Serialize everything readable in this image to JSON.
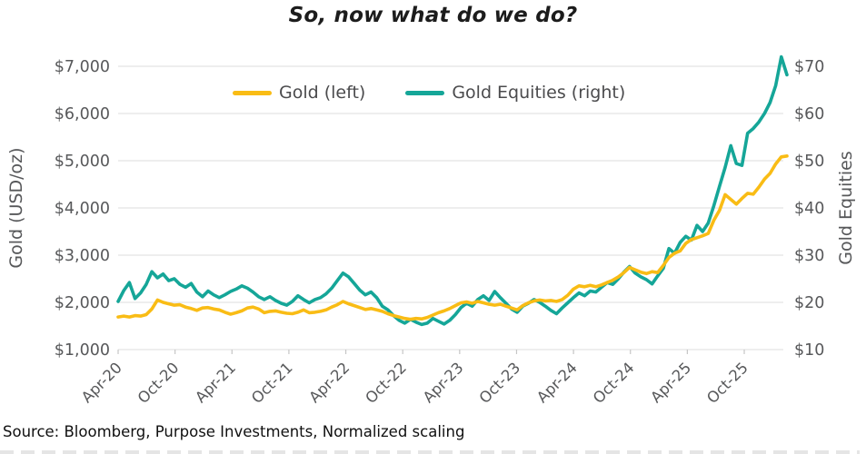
{
  "title": "So, now what do we do?",
  "source_note": "Source: Bloomberg, Purpose Investments, Normalized scaling",
  "colors": {
    "gold_line": "#F9BC15",
    "equities_line": "#15A698",
    "grid": "#dcdcdc",
    "axis_tick": "#c6c6c6",
    "axis_text": "#57585a",
    "title_text": "#1c1c1c"
  },
  "chart_data": {
    "type": "line",
    "title": "So, now what do we do?",
    "x_axis": {
      "span_months": 70.5,
      "ticks": [
        {
          "label": "Apr-20",
          "month": 0
        },
        {
          "label": "Oct-20",
          "month": 6
        },
        {
          "label": "Apr-21",
          "month": 12
        },
        {
          "label": "Oct-21",
          "month": 18
        },
        {
          "label": "Apr-22",
          "month": 24
        },
        {
          "label": "Oct-22",
          "month": 30
        },
        {
          "label": "Apr-23",
          "month": 36
        },
        {
          "label": "Oct-23",
          "month": 42
        },
        {
          "label": "Apr-24",
          "month": 48
        },
        {
          "label": "Oct-24",
          "month": 54
        },
        {
          "label": "Apr-25",
          "month": 60
        },
        {
          "label": "Oct-25",
          "month": 66
        }
      ]
    },
    "left_axis": {
      "label": "Gold (USD/oz)",
      "min": 1000,
      "max": 7000,
      "tick_values": [
        7000,
        6000,
        5000,
        4000,
        3000,
        2000,
        1000
      ],
      "tick_labels": [
        "$7,000",
        "$6,000",
        "$5,000",
        "$4,000",
        "$3,000",
        "$2,000",
        "$1,000"
      ]
    },
    "right_axis": {
      "label": "Gold Equities",
      "min": 10,
      "max": 70,
      "tick_labels": [
        "$70",
        "$60",
        "$50",
        "$40",
        "$30",
        "$20",
        "$10"
      ]
    },
    "legend_position": "top-center",
    "grid": "horizontal",
    "series": [
      {
        "name": "Gold (left)",
        "axis": "left",
        "color": "#F9BC15",
        "values": [
          1690,
          1710,
          1690,
          1720,
          1710,
          1740,
          1860,
          2050,
          2000,
          1970,
          1940,
          1950,
          1900,
          1870,
          1830,
          1880,
          1890,
          1860,
          1840,
          1790,
          1750,
          1780,
          1820,
          1880,
          1900,
          1860,
          1780,
          1810,
          1820,
          1790,
          1770,
          1760,
          1790,
          1840,
          1780,
          1790,
          1810,
          1840,
          1900,
          1950,
          2020,
          1970,
          1930,
          1890,
          1850,
          1870,
          1840,
          1810,
          1760,
          1720,
          1690,
          1660,
          1640,
          1660,
          1650,
          1680,
          1730,
          1780,
          1820,
          1870,
          1930,
          1990,
          2010,
          1980,
          2020,
          1990,
          1960,
          1940,
          1960,
          1920,
          1880,
          1840,
          1930,
          1990,
          2030,
          2050,
          2030,
          2040,
          2020,
          2060,
          2150,
          2280,
          2350,
          2330,
          2360,
          2330,
          2370,
          2420,
          2470,
          2540,
          2630,
          2740,
          2690,
          2640,
          2610,
          2650,
          2630,
          2780,
          2950,
          3040,
          3090,
          3250,
          3330,
          3370,
          3410,
          3460,
          3740,
          3950,
          4280,
          4180,
          4080,
          4200,
          4310,
          4290,
          4440,
          4610,
          4730,
          4930,
          5080,
          5100
        ]
      },
      {
        "name": "Gold Equities (right)",
        "axis": "right",
        "color": "#15A698",
        "values": [
          20.2,
          22.5,
          24.2,
          20.8,
          22.0,
          23.8,
          26.5,
          25.2,
          26.0,
          24.6,
          25.0,
          23.8,
          23.2,
          24.0,
          22.2,
          21.2,
          22.4,
          21.6,
          21.0,
          21.6,
          22.3,
          22.8,
          23.5,
          23.0,
          22.2,
          21.2,
          20.6,
          21.2,
          20.4,
          19.8,
          19.4,
          20.2,
          21.4,
          20.6,
          19.9,
          20.6,
          21.0,
          21.8,
          23.0,
          24.6,
          26.2,
          25.4,
          24.0,
          22.6,
          21.6,
          22.2,
          21.0,
          19.2,
          18.4,
          17.2,
          16.2,
          15.6,
          16.4,
          15.8,
          15.3,
          15.6,
          16.6,
          16.0,
          15.4,
          16.2,
          17.4,
          18.9,
          19.8,
          19.2,
          20.6,
          21.4,
          20.4,
          22.3,
          21.0,
          19.8,
          18.6,
          17.9,
          19.2,
          19.8,
          20.6,
          20.0,
          19.2,
          18.3,
          17.6,
          18.8,
          19.9,
          21.0,
          22.0,
          21.4,
          22.4,
          22.2,
          23.2,
          24.2,
          23.8,
          25.0,
          26.4,
          27.6,
          26.2,
          25.4,
          24.8,
          23.9,
          25.6,
          27.2,
          31.4,
          30.4,
          32.7,
          34.0,
          33.2,
          36.3,
          35.0,
          36.8,
          40.5,
          44.6,
          48.6,
          53.2,
          49.4,
          49.0,
          55.8,
          56.8,
          58.2,
          60.0,
          62.3,
          65.9,
          72.0,
          68.2
        ]
      }
    ]
  }
}
